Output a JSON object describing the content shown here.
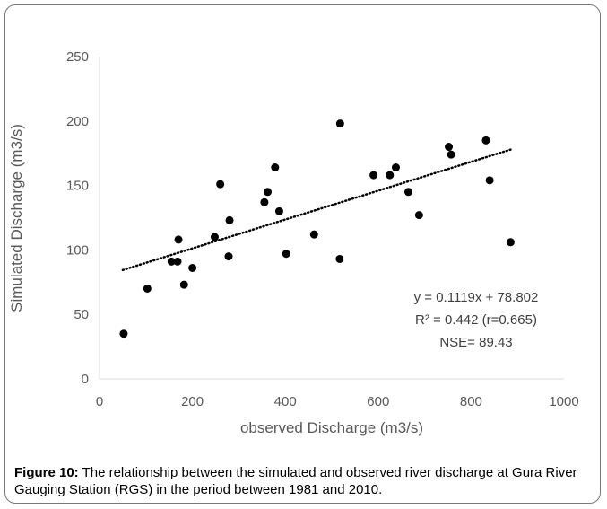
{
  "chart_data": {
    "type": "scatter",
    "xlabel": "observed Discharge (m3/s)",
    "ylabel": "Simulated Discharge (m3/s)",
    "xlim": [
      0,
      1000
    ],
    "ylim": [
      0,
      250
    ],
    "x_ticks": [
      "0",
      "200",
      "400",
      "600",
      "800",
      "1000"
    ],
    "y_ticks": [
      "0",
      "50",
      "100",
      "150",
      "200",
      "250"
    ],
    "grid": false,
    "legend": "none",
    "marker_color": "#000000",
    "trendline": {
      "slope": 0.1119,
      "intercept": 78.802,
      "x_range": [
        50,
        885
      ],
      "style": "dotted"
    },
    "annotations": [
      "y = 0.1119x + 78.802",
      "R² = 0.442 (r=0.665)",
      "NSE= 89.43"
    ],
    "points": [
      [
        52,
        35
      ],
      [
        103,
        70
      ],
      [
        155,
        91
      ],
      [
        168,
        91
      ],
      [
        170,
        108
      ],
      [
        182,
        73
      ],
      [
        200,
        86
      ],
      [
        248,
        110
      ],
      [
        260,
        151
      ],
      [
        278,
        95
      ],
      [
        280,
        123
      ],
      [
        355,
        137
      ],
      [
        362,
        145
      ],
      [
        378,
        164
      ],
      [
        387,
        130
      ],
      [
        402,
        97
      ],
      [
        462,
        112
      ],
      [
        517,
        93
      ],
      [
        518,
        198
      ],
      [
        590,
        158
      ],
      [
        625,
        158
      ],
      [
        638,
        164
      ],
      [
        665,
        145
      ],
      [
        688,
        127
      ],
      [
        752,
        180
      ],
      [
        757,
        174
      ],
      [
        832,
        185
      ],
      [
        840,
        154
      ],
      [
        885,
        106
      ]
    ]
  },
  "caption": {
    "label": "Figure 10:",
    "text": " The relationship between the simulated and observed river discharge at Gura River Gauging Station (RGS) in the period between 1981 and 2010."
  }
}
